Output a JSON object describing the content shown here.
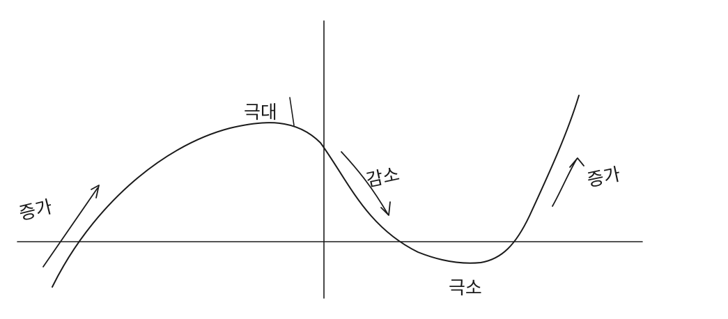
{
  "labels": {
    "left_increase": "증가",
    "local_max": "극대",
    "decrease": "감소",
    "local_min": "극소",
    "right_increase": "증가"
  },
  "colors": {
    "ink": "#1a1a1a",
    "background": "#ffffff"
  }
}
